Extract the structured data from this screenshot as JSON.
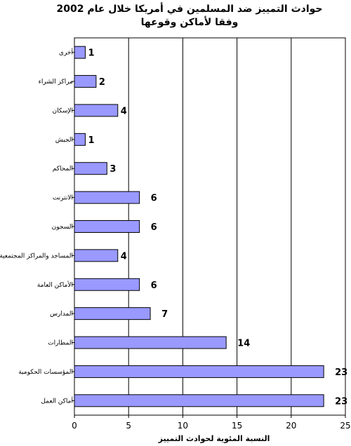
{
  "chart_data": {
    "type": "bar",
    "orientation": "horizontal",
    "title_line1": "حوادث التمييز ضد المسلمين في أمريكا خلال عام 2002",
    "title_line2": "وفقا لأماكن وقوعها",
    "categories": [
      "أخرى",
      "مراكز الشراء",
      "الإسكان",
      "الجيش",
      "المحاكم",
      "الانترنت",
      "السجون",
      "المساجد والمراكز المجتمعية",
      "الأماكن العامة",
      "المدارس",
      "المطارات",
      "المؤسسات الحكومية",
      "أماكن العمل"
    ],
    "values": [
      1,
      2,
      4,
      1,
      3,
      6,
      6,
      4,
      6,
      7,
      14,
      23,
      23
    ],
    "xlabel": "النسبة المئوية لحوادث التمييز",
    "ylabel": "",
    "xlim": [
      0,
      25
    ],
    "xticks": [
      0,
      5,
      10,
      15,
      20,
      25
    ],
    "grid": true,
    "bar_color": "#9999ff",
    "bar_edge_color": "#000000",
    "legend": "none"
  }
}
